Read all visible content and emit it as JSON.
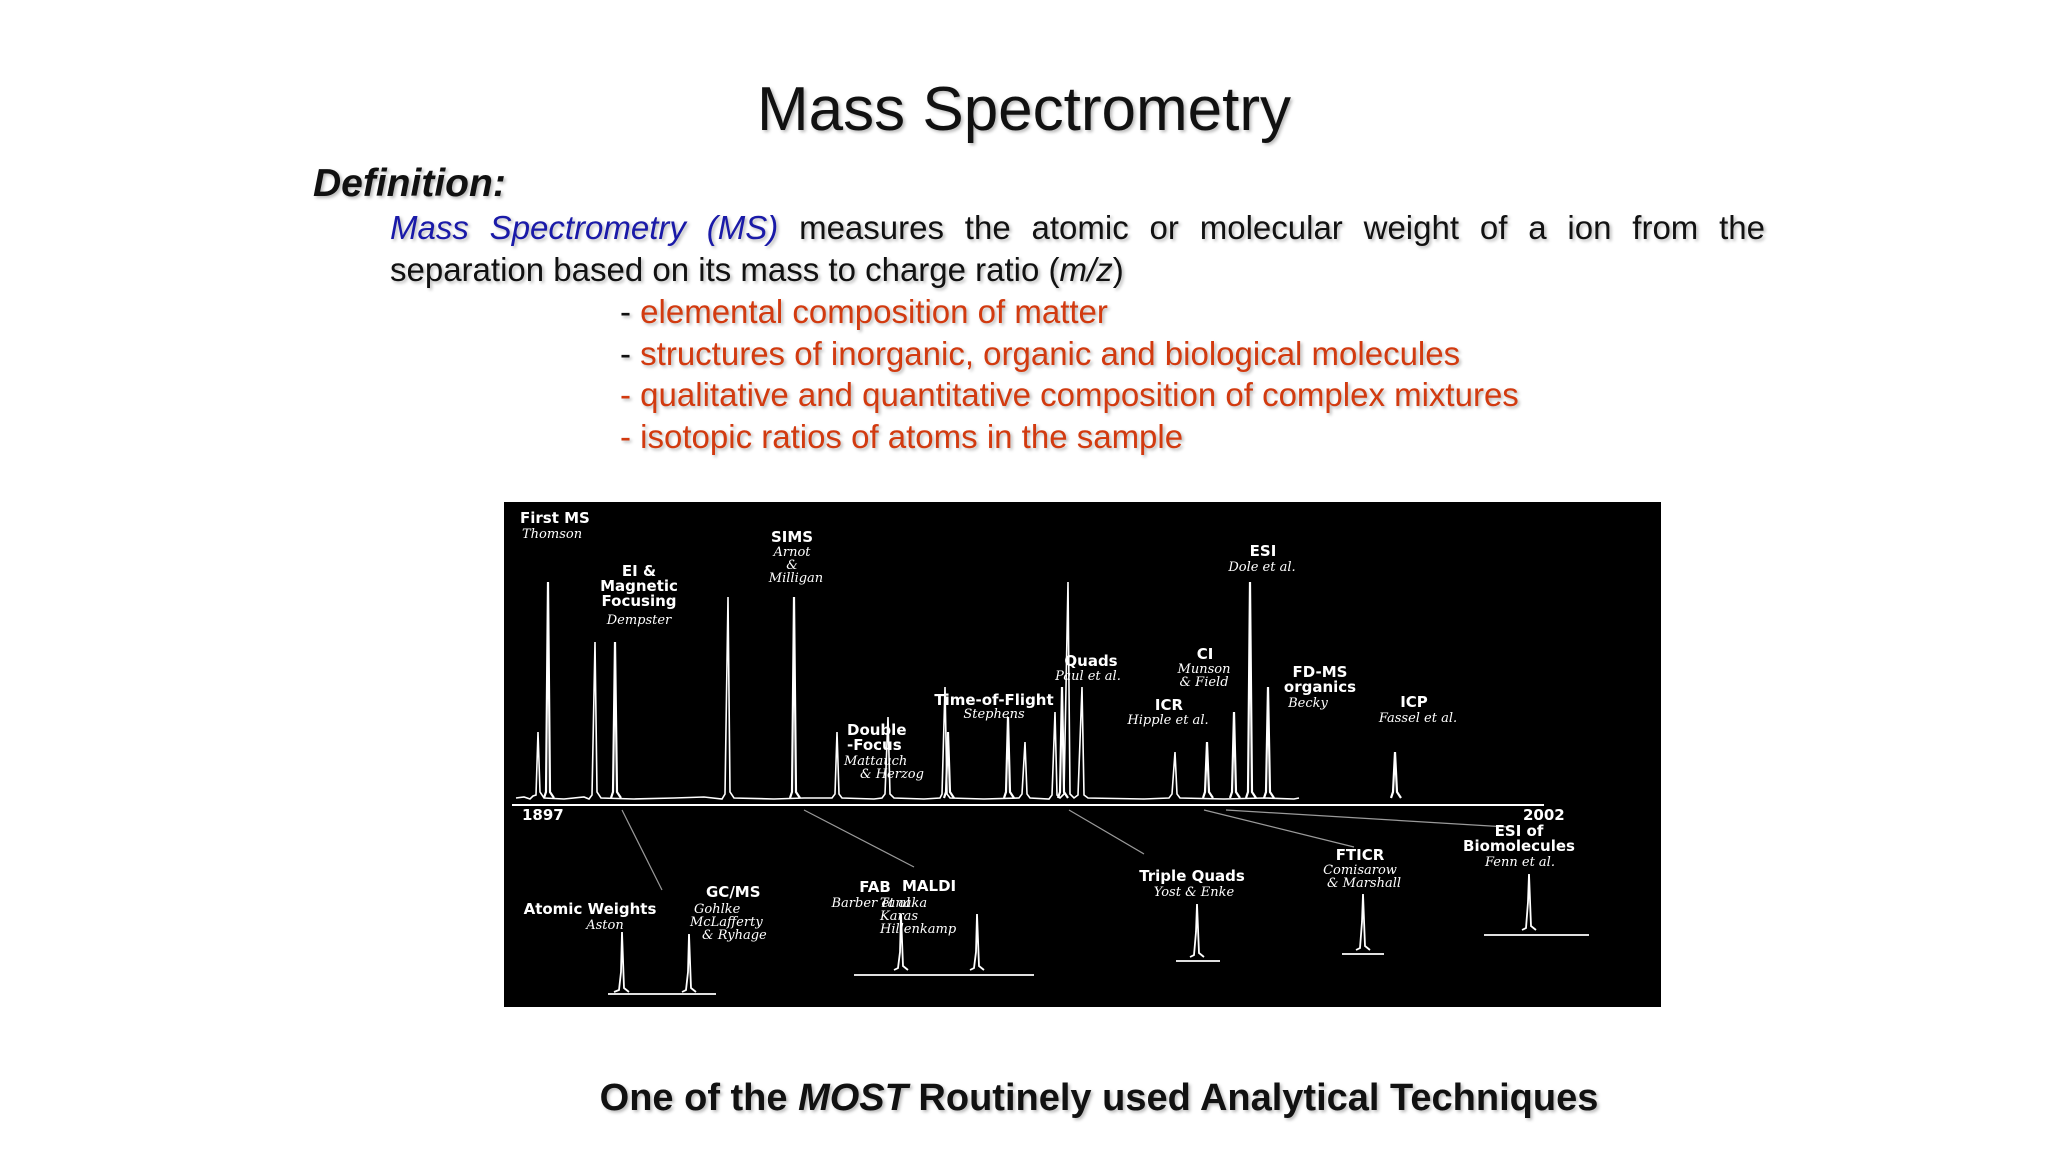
{
  "slide": {
    "title": "Mass Spectrometry",
    "definition_heading": "Definition",
    "definition_colon": ":",
    "term": "Mass Spectrometry (MS)",
    "definition_body": " measures the atomic or molecular weight of a ion from the separation based on its mass to charge ratio (",
    "mz": "m/z",
    "close_paren": ")",
    "bullets": [
      {
        "dash": "- ",
        "text": "elemental composition of matter"
      },
      {
        "dash": "- ",
        "text": "structures of inorganic, organic and biological molecules"
      },
      {
        "dash": "- ",
        "text": "qualitative and quantitative composition of complex mixtures"
      },
      {
        "dash": "- ",
        "text": "isotopic ratios of atoms in the sample"
      }
    ],
    "footer_pre": "One of the ",
    "footer_em": "MOST",
    "footer_post": " Routinely used Analytical Techniques"
  },
  "figure": {
    "start_year": "1897",
    "end_year": "2002",
    "above_labels": {
      "first_ms": {
        "name": "First MS",
        "people": [
          "Thomson"
        ]
      },
      "ei_magnetic": {
        "name": [
          "EI &",
          "Magnetic",
          "Focusing"
        ],
        "people": [
          "Dempster"
        ]
      },
      "sims": {
        "name": "SIMS",
        "people": [
          "Arnot",
          "&",
          "Milligan"
        ]
      },
      "double_focus": {
        "name": [
          "Double",
          "-Focus"
        ],
        "people": [
          "Mattauch",
          "& Herzog"
        ]
      },
      "tof": {
        "name": "Time-of-Flight",
        "people": [
          "Stephens"
        ]
      },
      "quads": {
        "name": "Quads",
        "people": [
          "Paul et al."
        ]
      },
      "ci": {
        "name": "CI",
        "people": [
          "Munson",
          "& Field"
        ]
      },
      "icr": {
        "name": "ICR",
        "people": [
          "Hipple et al."
        ]
      },
      "esi": {
        "name": "ESI",
        "people": [
          "Dole et al."
        ]
      },
      "fdms": {
        "name": [
          "FD-MS",
          "organics"
        ],
        "people": [
          "Becky"
        ]
      },
      "icp": {
        "name": "ICP",
        "people": [
          "Fassel et al."
        ]
      }
    },
    "below_labels": {
      "atomic_weights": {
        "name": "Atomic Weights",
        "people": [
          "Aston"
        ]
      },
      "gcms": {
        "name": "GC/MS",
        "people": [
          "Gohlke",
          "McLafferty",
          "& Ryhage"
        ]
      },
      "fab": {
        "name": "FAB",
        "people": [
          "Barber et al."
        ]
      },
      "maldi": {
        "name": "MALDI",
        "people": [
          "Tanaka",
          "Karas",
          "Hillenkamp"
        ]
      },
      "triple_quads": {
        "name": "Triple Quads",
        "people": [
          "Yost & Enke"
        ]
      },
      "fticr": {
        "name": "FTICR",
        "people": [
          "Comisarow",
          "& Marshall"
        ]
      },
      "esi_bio": {
        "name": [
          "ESI of",
          "Biomolecules"
        ],
        "people": [
          "Fenn et al."
        ]
      }
    }
  }
}
